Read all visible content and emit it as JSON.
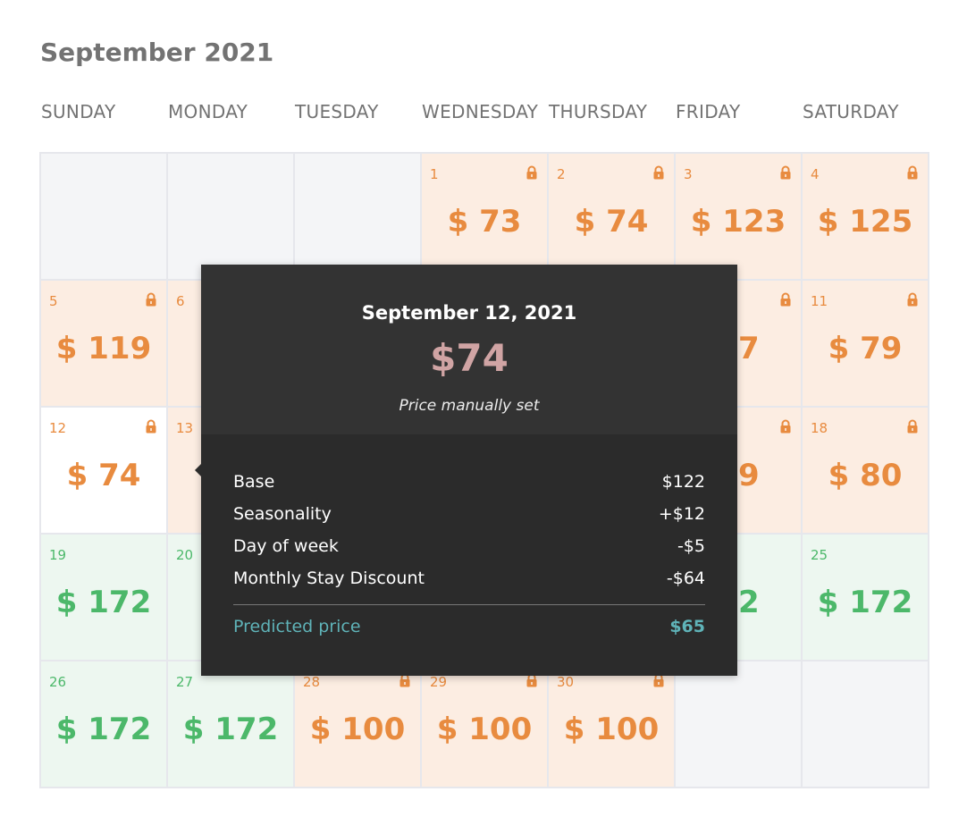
{
  "calendar": {
    "title": "September 2021",
    "weekdays": [
      "SUNDAY",
      "MONDAY",
      "TUESDAY",
      "WEDNESDAY",
      "THURSDAY",
      "FRIDAY",
      "SATURDAY"
    ],
    "colors": {
      "orange": "#e88b3f",
      "green": "#4cb86a",
      "orange_bg": "#fcede2",
      "green_bg": "#edf7f0",
      "empty_bg": "#f4f5f7"
    },
    "weeks": [
      [
        {
          "empty": true
        },
        {
          "empty": true
        },
        {
          "empty": true
        },
        {
          "day": "1",
          "price": "$ 73",
          "locked": true,
          "style": "orange"
        },
        {
          "day": "2",
          "price": "$ 74",
          "locked": true,
          "style": "orange"
        },
        {
          "day": "3",
          "price": "$ 123",
          "locked": true,
          "style": "orange"
        },
        {
          "day": "4",
          "price": "$ 125",
          "locked": true,
          "style": "orange"
        }
      ],
      [
        {
          "day": "5",
          "price": "$ 119",
          "locked": true,
          "style": "orange"
        },
        {
          "day": "6",
          "price": "",
          "locked": false,
          "style": "orange"
        },
        {
          "day": "",
          "price": "",
          "locked": false,
          "style": "orange"
        },
        {
          "day": "",
          "price": "",
          "locked": false,
          "style": "orange"
        },
        {
          "day": "",
          "price": "",
          "locked": false,
          "style": "orange"
        },
        {
          "day": "",
          "price": "77",
          "locked": true,
          "style": "orange"
        },
        {
          "day": "11",
          "price": "$ 79",
          "locked": true,
          "style": "orange"
        }
      ],
      [
        {
          "day": "12",
          "price": "$ 74",
          "locked": true,
          "style": "white"
        },
        {
          "day": "13",
          "price": "",
          "locked": false,
          "style": "orange"
        },
        {
          "day": "",
          "price": "",
          "locked": false,
          "style": "orange"
        },
        {
          "day": "",
          "price": "",
          "locked": false,
          "style": "orange"
        },
        {
          "day": "",
          "price": "",
          "locked": false,
          "style": "orange"
        },
        {
          "day": "",
          "price": "79",
          "locked": true,
          "style": "orange"
        },
        {
          "day": "18",
          "price": "$ 80",
          "locked": true,
          "style": "orange"
        }
      ],
      [
        {
          "day": "19",
          "price": "$ 172",
          "locked": false,
          "style": "green"
        },
        {
          "day": "20",
          "price": "",
          "locked": false,
          "style": "green"
        },
        {
          "day": "",
          "price": "",
          "locked": false,
          "style": "green"
        },
        {
          "day": "",
          "price": "",
          "locked": false,
          "style": "green"
        },
        {
          "day": "",
          "price": "",
          "locked": false,
          "style": "green"
        },
        {
          "day": "",
          "price": "72",
          "locked": false,
          "style": "green"
        },
        {
          "day": "25",
          "price": "$ 172",
          "locked": false,
          "style": "green"
        }
      ],
      [
        {
          "day": "26",
          "price": "$ 172",
          "locked": false,
          "style": "green"
        },
        {
          "day": "27",
          "price": "$ 172",
          "locked": false,
          "style": "green"
        },
        {
          "day": "28",
          "price": "$ 100",
          "locked": true,
          "style": "orange"
        },
        {
          "day": "29",
          "price": "$ 100",
          "locked": true,
          "style": "orange"
        },
        {
          "day": "30",
          "price": "$ 100",
          "locked": true,
          "style": "orange"
        },
        {
          "empty": true
        },
        {
          "empty": true
        }
      ]
    ]
  },
  "tooltip": {
    "date": "September 12, 2021",
    "price": "$74",
    "note": "Price manually set",
    "breakdown": [
      {
        "label": "Base",
        "value": "$122"
      },
      {
        "label": "Seasonality",
        "value": "+$12"
      },
      {
        "label": "Day of week",
        "value": "-$5"
      },
      {
        "label": "Monthly Stay Discount",
        "value": "-$64"
      }
    ],
    "predicted": {
      "label": "Predicted price",
      "value": "$65"
    },
    "colors": {
      "price": "#d0a4a4",
      "predicted": "#5fb3b8"
    }
  }
}
